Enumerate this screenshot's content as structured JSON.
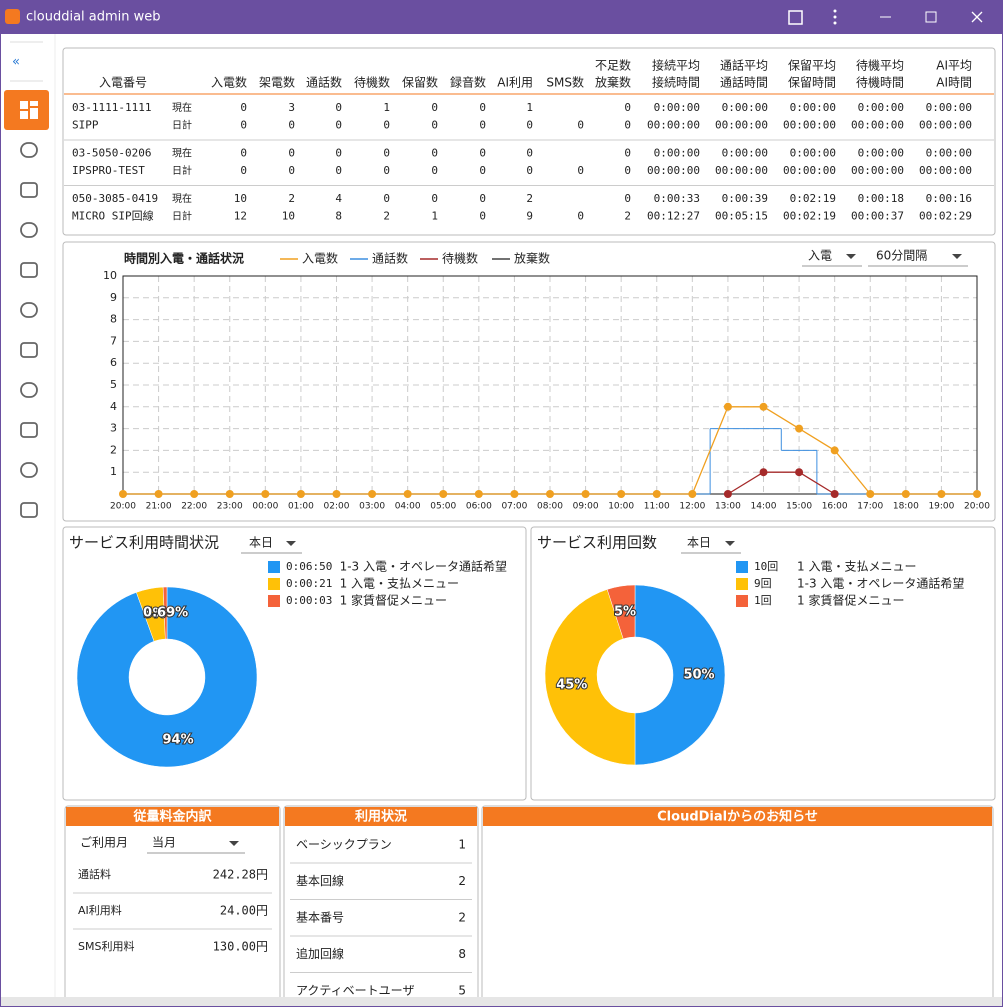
{
  "window": {
    "title": "clouddial admin web"
  },
  "sidebar": {
    "collapse": "«"
  },
  "table": {
    "number_header": "入電番号",
    "columns": [
      "入電数",
      "架電数",
      "通話数",
      "待機数",
      "保留数",
      "録音数",
      "AI利用",
      "SMS数",
      [
        "不足数",
        "放棄数"
      ],
      [
        "接続平均",
        "接続時間"
      ],
      [
        "通話平均",
        "通話時間"
      ],
      [
        "保留平均",
        "保留時間"
      ],
      [
        "待機平均",
        "待機時間"
      ],
      [
        "AI平均",
        "AI時間"
      ]
    ],
    "groups": [
      {
        "number": "03-1111-1111",
        "name": "SIPP",
        "rows": [
          {
            "label": "現在",
            "cells": [
              0,
              3,
              0,
              1,
              0,
              0,
              1,
              null,
              0,
              "0:00:00",
              "0:00:00",
              "0:00:00",
              "0:00:00",
              "0:00:00"
            ]
          },
          {
            "label": "日計",
            "cells": [
              0,
              0,
              0,
              0,
              0,
              0,
              0,
              0,
              0,
              "00:00:00",
              "00:00:00",
              "00:00:00",
              "00:00:00",
              "00:00:00"
            ]
          }
        ]
      },
      {
        "number": "03-5050-0206",
        "name": "IPSPRO-TEST",
        "rows": [
          {
            "label": "現在",
            "cells": [
              0,
              0,
              0,
              0,
              0,
              0,
              0,
              null,
              0,
              "0:00:00",
              "0:00:00",
              "0:00:00",
              "0:00:00",
              "0:00:00"
            ]
          },
          {
            "label": "日計",
            "cells": [
              0,
              0,
              0,
              0,
              0,
              0,
              0,
              0,
              0,
              "00:00:00",
              "00:00:00",
              "00:00:00",
              "00:00:00",
              "00:00:00"
            ]
          }
        ]
      },
      {
        "number": "050-3085-0419",
        "name": "MICRO SIP回線",
        "rows": [
          {
            "label": "現在",
            "cells": [
              10,
              2,
              4,
              0,
              0,
              0,
              2,
              null,
              0,
              "0:00:33",
              "0:00:39",
              "0:02:19",
              "0:00:18",
              "0:00:16"
            ]
          },
          {
            "label": "日計",
            "cells": [
              12,
              10,
              8,
              2,
              1,
              0,
              9,
              0,
              2,
              "00:12:27",
              "00:05:15",
              "00:02:19",
              "00:00:37",
              "00:02:29"
            ]
          }
        ]
      }
    ]
  },
  "chart_data": [
    {
      "type": "line",
      "title": "時間別入電・通話状況",
      "dropdowns": [
        "入電",
        "60分間隔"
      ],
      "categories": [
        "20:00",
        "21:00",
        "22:00",
        "23:00",
        "00:00",
        "01:00",
        "02:00",
        "03:00",
        "04:00",
        "05:00",
        "06:00",
        "07:00",
        "08:00",
        "09:00",
        "10:00",
        "11:00",
        "12:00",
        "13:00",
        "14:00",
        "15:00",
        "16:00",
        "17:00",
        "18:00",
        "19:00",
        "20:00"
      ],
      "series": [
        {
          "name": "入電数",
          "color": "#f0a020",
          "markers": true,
          "values": [
            0,
            0,
            0,
            0,
            0,
            0,
            0,
            0,
            0,
            0,
            0,
            0,
            0,
            0,
            0,
            0,
            0,
            4,
            4,
            3,
            2,
            0,
            0,
            0,
            0
          ]
        },
        {
          "name": "通話数",
          "color": "#3d8fe0",
          "step": "mid",
          "values": [
            0,
            0,
            0,
            0,
            0,
            0,
            0,
            0,
            0,
            0,
            0,
            0,
            0,
            0,
            0,
            0,
            0,
            3,
            3,
            2,
            0,
            0,
            0,
            0,
            0
          ]
        },
        {
          "name": "待機数",
          "color": "#a52a2a",
          "markers": true,
          "values": [
            null,
            null,
            null,
            null,
            null,
            null,
            null,
            null,
            null,
            null,
            null,
            null,
            null,
            null,
            null,
            null,
            null,
            0,
            1,
            1,
            0,
            null,
            null,
            null,
            null
          ]
        },
        {
          "name": "放棄数",
          "color": "#444444",
          "values": [
            0,
            0,
            0,
            0,
            0,
            0,
            0,
            0,
            0,
            0,
            0,
            0,
            0,
            0,
            0,
            0,
            0,
            0,
            0,
            0,
            0,
            0,
            0,
            0,
            0
          ]
        }
      ],
      "ylim": [
        0,
        10
      ],
      "yticks": [
        1,
        2,
        3,
        4,
        5,
        6,
        7,
        8,
        9,
        10
      ],
      "grid": true
    },
    {
      "type": "pie",
      "title": "サービス利用時間状況",
      "dropdown": "本日",
      "categories": [
        "1-3 入電・オペレータ通話希望",
        "1 入電・支払メニュー",
        "1 家賃督促メニュー"
      ],
      "legend_values": [
        "0:06:50",
        "0:00:21",
        "0:00:03"
      ],
      "values": [
        94.47,
        4.84,
        0.69
      ],
      "value_labels": [
        "94%",
        "5%",
        "0.69%"
      ],
      "colors": [
        "#2196f3",
        "#ffc107",
        "#f4623a"
      ]
    },
    {
      "type": "pie",
      "title": "サービス利用回数",
      "dropdown": "本日",
      "categories": [
        "1 入電・支払メニュー",
        "1-3 入電・オペレータ通話希望",
        "1 家賃督促メニュー"
      ],
      "legend_values": [
        "10回",
        "9回",
        "1回"
      ],
      "values": [
        50,
        45,
        5
      ],
      "value_labels": [
        "50%",
        "45%",
        "5%"
      ],
      "colors": [
        "#2196f3",
        "#ffc107",
        "#f4623a"
      ]
    }
  ],
  "fees": {
    "title": "従量料金内訳",
    "month_label": "ご利用月",
    "month": "当月",
    "rows": [
      [
        "通話料",
        "242.28円"
      ],
      [
        "AI利用料",
        "24.00円"
      ],
      [
        "SMS利用料",
        "130.00円"
      ]
    ]
  },
  "usage": {
    "title": "利用状況",
    "rows": [
      [
        "ベーシックプラン",
        1
      ],
      [
        "基本回線",
        2
      ],
      [
        "基本番号",
        2
      ],
      [
        "追加回線",
        8
      ],
      [
        "アクティベートユーザ",
        5
      ]
    ]
  },
  "notice": {
    "title": "CloudDialからのお知らせ"
  }
}
